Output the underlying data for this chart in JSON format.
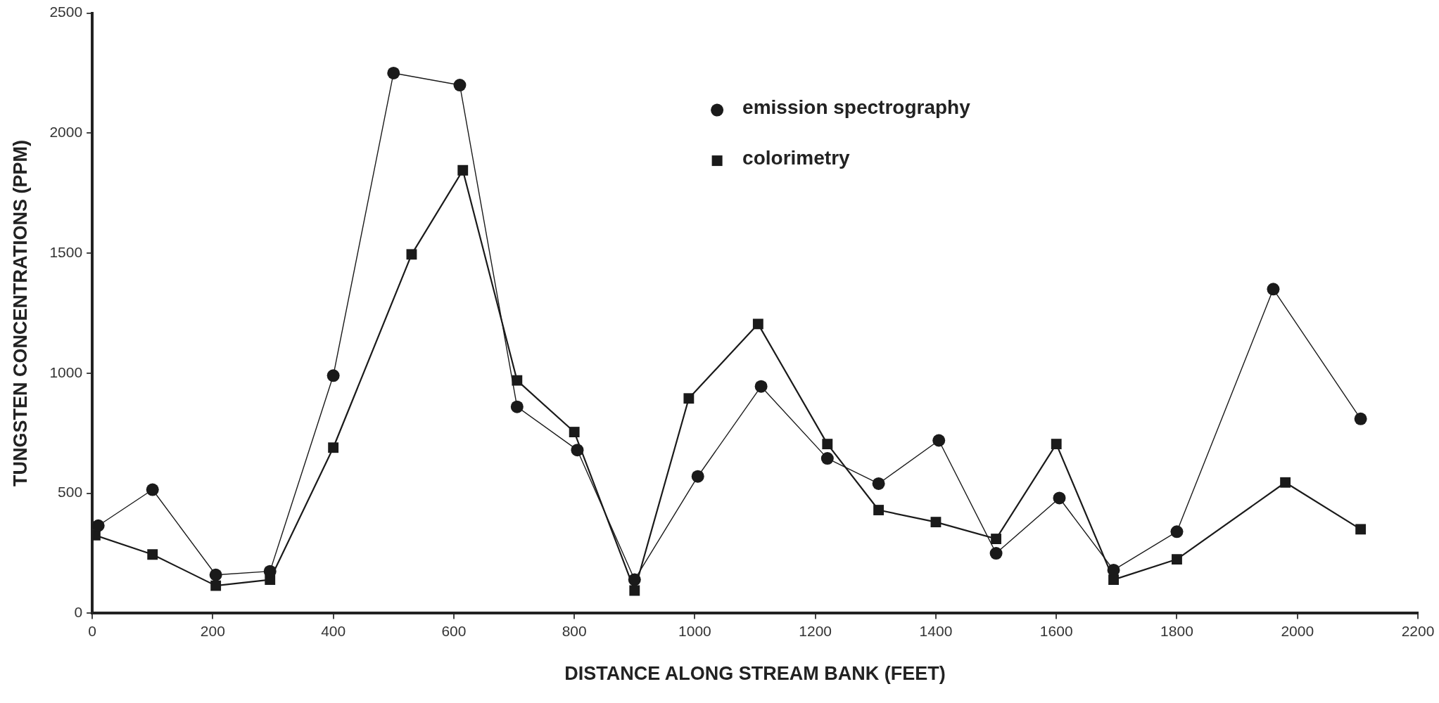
{
  "chart_data": {
    "type": "line",
    "xlabel": "DISTANCE ALONG STREAM BANK (FEET)",
    "ylabel": "TUNGSTEN CONCENTRATIONS (PPM)",
    "xlim": [
      0,
      2200
    ],
    "xticks": [
      0,
      200,
      400,
      600,
      800,
      1000,
      1200,
      1400,
      1600,
      1800,
      2000,
      2200
    ],
    "ylim": [
      0,
      2500
    ],
    "yticks": [
      0,
      500,
      1000,
      1500,
      2000,
      2500
    ],
    "legend": "top",
    "line_style": "solid",
    "series": [
      {
        "name": "emission spectrography",
        "color": "#1a1a1a",
        "marker": "circle",
        "x": [
          10,
          100,
          205,
          295,
          400,
          500,
          610,
          705,
          805,
          900,
          1005,
          1110,
          1220,
          1305,
          1405,
          1500,
          1605,
          1695,
          1800,
          1960,
          2105
        ],
        "values": [
          365,
          515,
          160,
          175,
          990,
          2250,
          2200,
          860,
          680,
          140,
          570,
          945,
          645,
          540,
          720,
          250,
          480,
          180,
          340,
          1350,
          810
        ]
      },
      {
        "name": "colorimetry",
        "color": "#1a1a1a",
        "marker": "square",
        "x": [
          5,
          100,
          205,
          295,
          400,
          530,
          615,
          705,
          800,
          900,
          990,
          1105,
          1220,
          1305,
          1400,
          1500,
          1600,
          1695,
          1800,
          1980,
          2105
        ],
        "values": [
          325,
          245,
          115,
          140,
          690,
          1495,
          1845,
          970,
          755,
          95,
          895,
          1205,
          705,
          430,
          380,
          310,
          705,
          140,
          225,
          545,
          350
        ]
      }
    ]
  }
}
